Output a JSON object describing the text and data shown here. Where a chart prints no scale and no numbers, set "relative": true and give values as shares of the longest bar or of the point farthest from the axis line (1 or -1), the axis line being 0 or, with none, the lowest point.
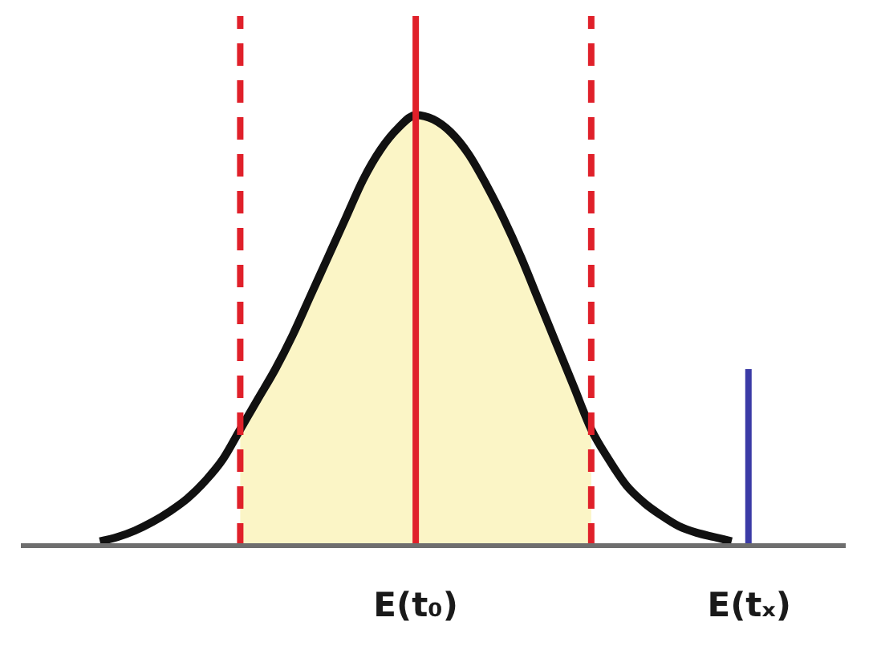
{
  "chart_data": {
    "type": "line",
    "relative": true,
    "marker": "none",
    "line_style": "solid",
    "categories": [
      null,
      null,
      null,
      null,
      null,
      null,
      null,
      null,
      null,
      null,
      null,
      null,
      null,
      null,
      null,
      null,
      null,
      null,
      null,
      null,
      null,
      null,
      "E(t₀)",
      null,
      null,
      null,
      null,
      null,
      null,
      null,
      null,
      null,
      null,
      null,
      null,
      null,
      null,
      null,
      null,
      null,
      null,
      "E(tₓ)",
      null,
      null,
      null,
      null,
      null
    ],
    "series": [
      {
        "type": "area",
        "color": "#fbf5c6",
        "values": [
          null,
          null,
          null,
          null,
          null,
          null,
          null,
          null,
          null,
          null,
          null,
          null,
          0.27,
          0.34,
          0.41,
          0.49,
          0.58,
          0.67,
          0.76,
          0.85,
          0.92,
          0.97,
          1,
          0.99,
          0.96,
          0.91,
          0.84,
          0.76,
          0.67,
          0.57,
          0.47,
          0.37,
          0.27,
          null,
          null,
          null,
          null,
          null,
          null,
          null,
          null,
          null,
          null,
          null,
          null,
          null,
          null
        ]
      },
      {
        "color": "#111111",
        "values": [
          null,
          null,
          null,
          null,
          0.01,
          0.02,
          0.035,
          0.055,
          0.08,
          0.11,
          0.15,
          0.2,
          0.27,
          0.34,
          0.41,
          0.49,
          0.58,
          0.67,
          0.76,
          0.85,
          0.92,
          0.97,
          1,
          0.99,
          0.96,
          0.91,
          0.84,
          0.76,
          0.67,
          0.57,
          0.47,
          0.37,
          0.27,
          0.2,
          0.14,
          0.1,
          0.07,
          0.045,
          0.03,
          0.02,
          0.01,
          null,
          null,
          null,
          null,
          null,
          null
        ]
      },
      {
        "type": "bar",
        "color": "#3b3ba6",
        "values": [
          null,
          null,
          null,
          null,
          null,
          null,
          null,
          null,
          null,
          null,
          null,
          null,
          null,
          null,
          null,
          null,
          null,
          null,
          null,
          null,
          null,
          null,
          null,
          null,
          null,
          null,
          null,
          null,
          null,
          null,
          null,
          null,
          null,
          null,
          null,
          null,
          null,
          null,
          null,
          null,
          null,
          0.41,
          null,
          null,
          null,
          null,
          null
        ]
      }
    ],
    "ref_lines": [
      {
        "axis": "x",
        "value": "E(t₀)",
        "color": "#e0202a",
        "line_style": "solid"
      }
    ]
  }
}
